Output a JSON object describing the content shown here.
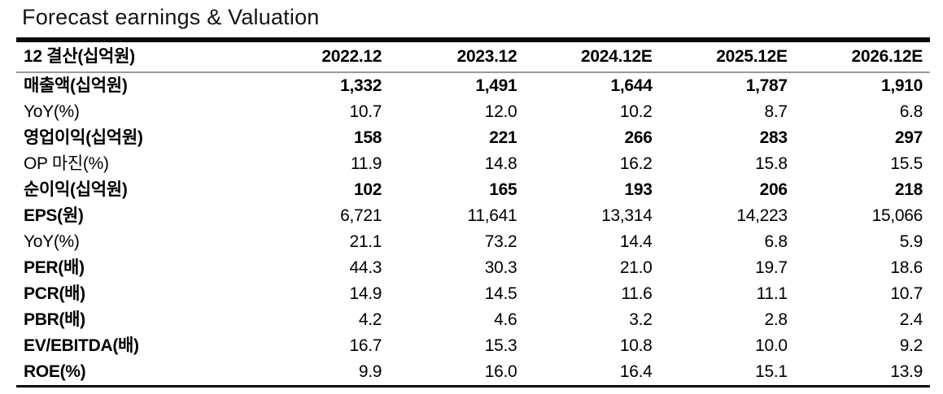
{
  "title": "Forecast earnings & Valuation",
  "colors": {
    "text": "#000000",
    "rule_heavy": "#0a0a0a",
    "rule_header": "#9b9b9b",
    "background": "#ffffff"
  },
  "table": {
    "header": {
      "label": "12 결산(십억원)",
      "columns": [
        "2022.12",
        "2023.12",
        "2024.12E",
        "2025.12E",
        "2026.12E"
      ]
    },
    "rows": [
      {
        "label": "매출액(십억원)",
        "bold_label": true,
        "bold_values": true,
        "values": [
          "1,332",
          "1,491",
          "1,644",
          "1,787",
          "1,910"
        ]
      },
      {
        "label": "YoY(%)",
        "bold_label": false,
        "bold_values": false,
        "values": [
          "10.7",
          "12.0",
          "10.2",
          "8.7",
          "6.8"
        ]
      },
      {
        "label": "영업이익(십억원)",
        "bold_label": true,
        "bold_values": true,
        "values": [
          "158",
          "221",
          "266",
          "283",
          "297"
        ]
      },
      {
        "label": "OP 마진(%)",
        "bold_label": false,
        "bold_values": false,
        "values": [
          "11.9",
          "14.8",
          "16.2",
          "15.8",
          "15.5"
        ]
      },
      {
        "label": "순이익(십억원)",
        "bold_label": true,
        "bold_values": true,
        "values": [
          "102",
          "165",
          "193",
          "206",
          "218"
        ]
      },
      {
        "label": "EPS(원)",
        "bold_label": true,
        "bold_values": false,
        "values": [
          "6,721",
          "11,641",
          "13,314",
          "14,223",
          "15,066"
        ]
      },
      {
        "label": "YoY(%)",
        "bold_label": false,
        "bold_values": false,
        "values": [
          "21.1",
          "73.2",
          "14.4",
          "6.8",
          "5.9"
        ]
      },
      {
        "label": "PER(배)",
        "bold_label": true,
        "bold_values": false,
        "values": [
          "44.3",
          "30.3",
          "21.0",
          "19.7",
          "18.6"
        ]
      },
      {
        "label": "PCR(배)",
        "bold_label": true,
        "bold_values": false,
        "values": [
          "14.9",
          "14.5",
          "11.6",
          "11.1",
          "10.7"
        ]
      },
      {
        "label": "PBR(배)",
        "bold_label": true,
        "bold_values": false,
        "values": [
          "4.2",
          "4.6",
          "3.2",
          "2.8",
          "2.4"
        ]
      },
      {
        "label": "EV/EBITDA(배)",
        "bold_label": true,
        "bold_values": false,
        "values": [
          "16.7",
          "15.3",
          "10.8",
          "10.0",
          "9.2"
        ]
      },
      {
        "label": "ROE(%)",
        "bold_label": true,
        "bold_values": false,
        "values": [
          "9.9",
          "16.0",
          "16.4",
          "15.1",
          "13.9"
        ]
      }
    ]
  }
}
